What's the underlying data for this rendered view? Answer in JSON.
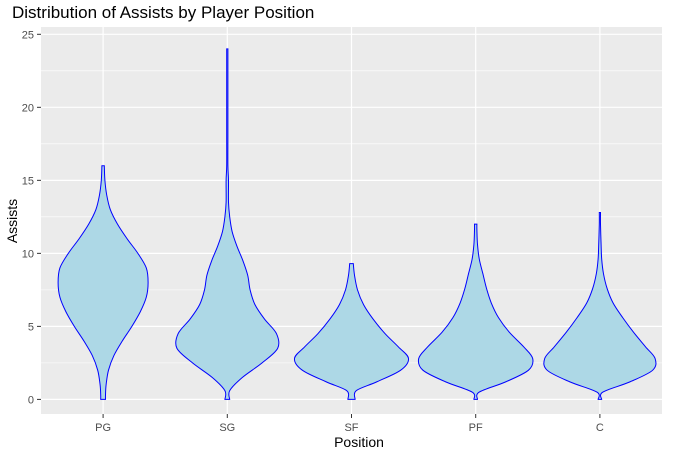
{
  "chart_data": {
    "type": "violin",
    "title": "Distribution of Assists by Player Position",
    "xlabel": "Position",
    "ylabel": "Assists",
    "ylim": [
      -1,
      25.5
    ],
    "yticks": [
      0,
      5,
      10,
      15,
      20,
      25
    ],
    "categories": [
      "PG",
      "SG",
      "SF",
      "PF",
      "C"
    ],
    "grid": true,
    "colors": {
      "fill": "#add8e6",
      "outline": "#0000ff",
      "panel": "#ebebeb",
      "gridline": "#ffffff"
    },
    "violins": [
      {
        "category": "PG",
        "min": 0,
        "max": 16,
        "density": [
          [
            0,
            0.04
          ],
          [
            0.3,
            0.04
          ],
          [
            1,
            0.05
          ],
          [
            2,
            0.09
          ],
          [
            3,
            0.18
          ],
          [
            4,
            0.32
          ],
          [
            5,
            0.48
          ],
          [
            6,
            0.62
          ],
          [
            7,
            0.72
          ],
          [
            8,
            0.75
          ],
          [
            9,
            0.72
          ],
          [
            10,
            0.58
          ],
          [
            11,
            0.4
          ],
          [
            12,
            0.24
          ],
          [
            13,
            0.12
          ],
          [
            14,
            0.06
          ],
          [
            15,
            0.03
          ],
          [
            16,
            0.02
          ]
        ]
      },
      {
        "category": "SG",
        "min": 0,
        "max": 24,
        "density": [
          [
            0,
            0.04
          ],
          [
            0.6,
            0.04
          ],
          [
            1.5,
            0.25
          ],
          [
            2.5,
            0.58
          ],
          [
            3.5,
            0.84
          ],
          [
            4.5,
            0.82
          ],
          [
            5.5,
            0.62
          ],
          [
            6.5,
            0.46
          ],
          [
            7.5,
            0.38
          ],
          [
            8.5,
            0.34
          ],
          [
            9.5,
            0.26
          ],
          [
            10.5,
            0.16
          ],
          [
            11.5,
            0.08
          ],
          [
            12.5,
            0.04
          ],
          [
            13.5,
            0.02
          ],
          [
            15,
            0.02
          ],
          [
            16,
            0.01
          ],
          [
            18,
            0.01
          ],
          [
            20,
            0.01
          ],
          [
            22,
            0.01
          ],
          [
            24,
            0.01
          ]
        ]
      },
      {
        "category": "SF",
        "min": 0,
        "max": 9.3,
        "density": [
          [
            0,
            0.06
          ],
          [
            0.6,
            0.08
          ],
          [
            1.2,
            0.42
          ],
          [
            2,
            0.82
          ],
          [
            2.8,
            0.95
          ],
          [
            3.6,
            0.78
          ],
          [
            4.5,
            0.56
          ],
          [
            5.5,
            0.36
          ],
          [
            6.5,
            0.2
          ],
          [
            7.5,
            0.1
          ],
          [
            8.5,
            0.05
          ],
          [
            9.3,
            0.03
          ]
        ]
      },
      {
        "category": "PF",
        "min": 0,
        "max": 12,
        "density": [
          [
            0,
            0.03
          ],
          [
            0.5,
            0.06
          ],
          [
            1.2,
            0.5
          ],
          [
            2,
            0.88
          ],
          [
            2.8,
            0.95
          ],
          [
            3.6,
            0.8
          ],
          [
            4.6,
            0.56
          ],
          [
            5.6,
            0.38
          ],
          [
            6.6,
            0.26
          ],
          [
            7.6,
            0.18
          ],
          [
            8.6,
            0.12
          ],
          [
            9.6,
            0.06
          ],
          [
            10.6,
            0.03
          ],
          [
            11.6,
            0.02
          ],
          [
            12,
            0.02
          ]
        ]
      },
      {
        "category": "C",
        "min": 0,
        "max": 12.8,
        "density": [
          [
            0,
            0.03
          ],
          [
            0.5,
            0.05
          ],
          [
            1.2,
            0.5
          ],
          [
            2,
            0.88
          ],
          [
            2.8,
            0.92
          ],
          [
            3.6,
            0.76
          ],
          [
            4.6,
            0.56
          ],
          [
            5.6,
            0.38
          ],
          [
            6.6,
            0.22
          ],
          [
            7.6,
            0.12
          ],
          [
            8.6,
            0.06
          ],
          [
            9.6,
            0.03
          ],
          [
            10.6,
            0.02
          ],
          [
            12,
            0.01
          ],
          [
            12.8,
            0.01
          ]
        ]
      }
    ]
  }
}
